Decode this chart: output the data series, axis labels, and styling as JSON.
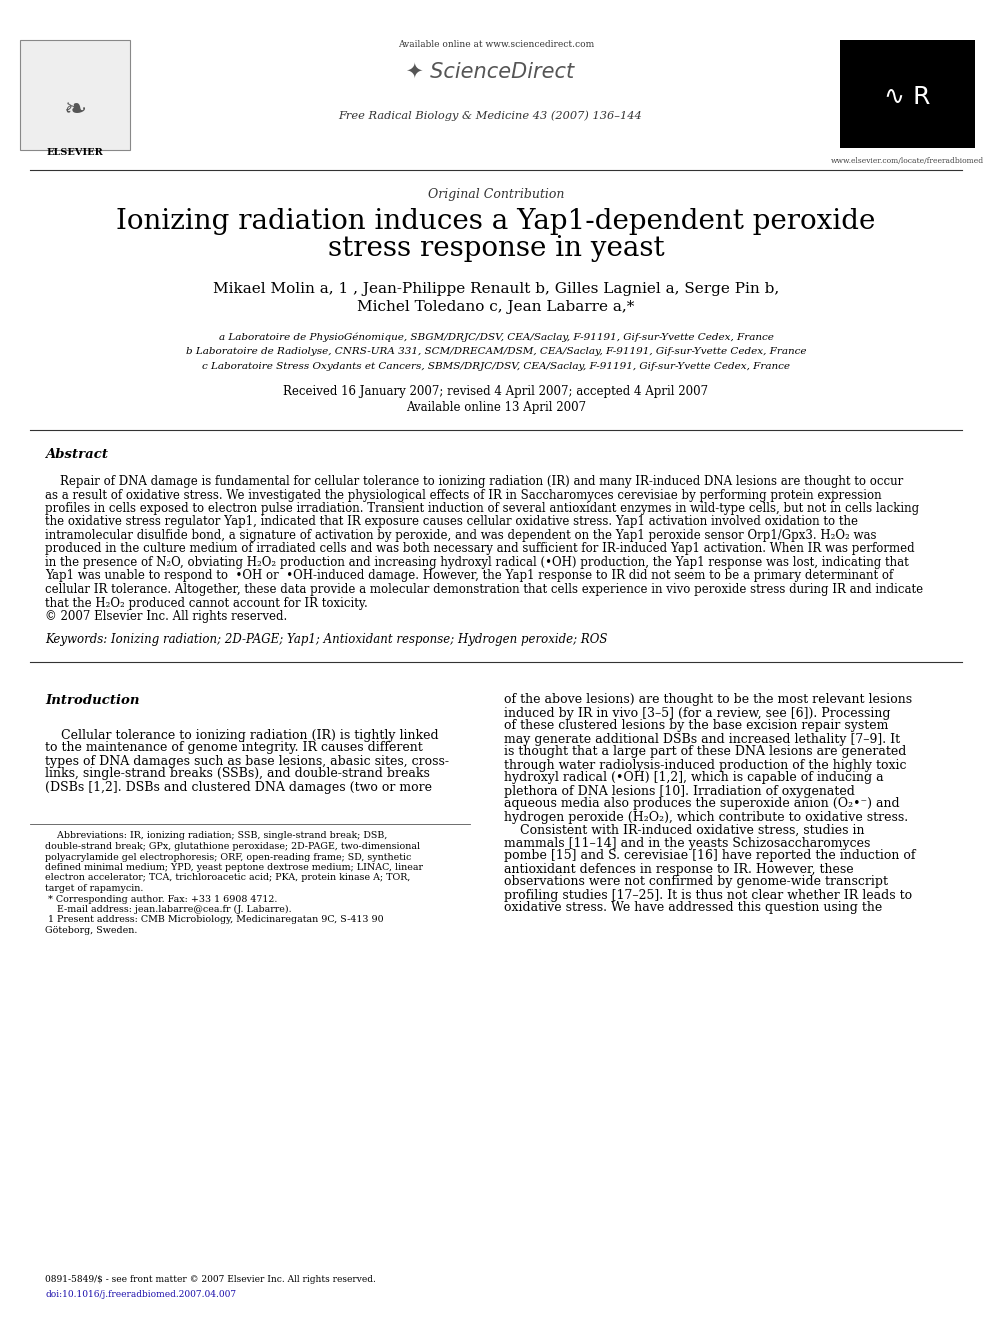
{
  "bg_color": "#ffffff",
  "title_line1": "Ionizing radiation induces a Yap1-dependent peroxide",
  "title_line2": "stress response in yeast",
  "subtitle": "Original Contribution",
  "journal_line": "Free Radical Biology & Medicine 43 (2007) 136–144",
  "available_online": "Available online at www.sciencedirect.com",
  "website": "www.elsevier.com/locate/freeradbiomed",
  "authors_line1": "Mikael Molin a, 1 , Jean-Philippe Renault b, Gilles Lagniel a, Serge Pin b,",
  "authors_line2": "Michel Toledano c, Jean Labarre a,*",
  "affil_a": "a Laboratoire de PhysioGénomique, SBGM/DRJC/DSV, CEA/Saclay, F-91191, Gif-sur-Yvette Cedex, France",
  "affil_b": "b Laboratoire de Radiolyse, CNRS-URA 331, SCM/DRECAM/DSM, CEA/Saclay, F-91191, Gif-sur-Yvette Cedex, France",
  "affil_c": "c Laboratoire Stress Oxydants et Cancers, SBMS/DRJC/DSV, CEA/Saclay, F-91191, Gif-sur-Yvette Cedex, France",
  "received": "Received 16 January 2007; revised 4 April 2007; accepted 4 April 2007",
  "available": "Available online 13 April 2007",
  "abstract_title": "Abstract",
  "abstract_lines": [
    "    Repair of DNA damage is fundamental for cellular tolerance to ionizing radiation (IR) and many IR-induced DNA lesions are thought to occur",
    "as a result of oxidative stress. We investigated the physiological effects of IR in Saccharomyces cerevisiae by performing protein expression",
    "profiles in cells exposed to electron pulse irradiation. Transient induction of several antioxidant enzymes in wild-type cells, but not in cells lacking",
    "the oxidative stress regulator Yap1, indicated that IR exposure causes cellular oxidative stress. Yap1 activation involved oxidation to the",
    "intramolecular disulfide bond, a signature of activation by peroxide, and was dependent on the Yap1 peroxide sensor Orp1/Gpx3. H₂O₂ was",
    "produced in the culture medium of irradiated cells and was both necessary and sufficient for IR-induced Yap1 activation. When IR was performed",
    "in the presence of N₂O, obviating H₂O₂ production and increasing hydroxyl radical (•OH) production, the Yap1 response was lost, indicating that",
    "Yap1 was unable to respond to  •OH or  •OH-induced damage. However, the Yap1 response to IR did not seem to be a primary determinant of",
    "cellular IR tolerance. Altogether, these data provide a molecular demonstration that cells experience in vivo peroxide stress during IR and indicate",
    "that the H₂O₂ produced cannot account for IR toxicity.",
    "© 2007 Elsevier Inc. All rights reserved."
  ],
  "keywords": "Keywords: Ionizing radiation; 2D-PAGE; Yap1; Antioxidant response; Hydrogen peroxide; ROS",
  "intro_title": "Introduction",
  "intro_left_lines": [
    "    Cellular tolerance to ionizing radiation (IR) is tightly linked",
    "to the maintenance of genome integrity. IR causes different",
    "types of DNA damages such as base lesions, abasic sites, cross-",
    "links, single-strand breaks (SSBs), and double-strand breaks",
    "(DSBs [1,2]. DSBs and clustered DNA damages (two or more"
  ],
  "intro_right_lines": [
    "of the above lesions) are thought to be the most relevant lesions",
    "induced by IR in vivo [3–5] (for a review, see [6]). Processing",
    "of these clustered lesions by the base excision repair system",
    "may generate additional DSBs and increased lethality [7–9]. It",
    "is thought that a large part of these DNA lesions are generated",
    "through water radiolysis-induced production of the highly toxic",
    "hydroxyl radical (•OH) [1,2], which is capable of inducing a",
    "plethora of DNA lesions [10]. Irradiation of oxygenated",
    "aqueous media also produces the superoxide anion (O₂•⁻) and",
    "hydrogen peroxide (H₂O₂), which contribute to oxidative stress.",
    "    Consistent with IR-induced oxidative stress, studies in",
    "mammals [11–14] and in the yeasts Schizosaccharomyces",
    "pombe [15] and S. cerevisiae [16] have reported the induction of",
    "antioxidant defences in response to IR. However, these",
    "observations were not confirmed by genome-wide transcript",
    "profiling studies [17–25]. It is thus not clear whether IR leads to",
    "oxidative stress. We have addressed this question using the"
  ],
  "footnote_lines": [
    "    Abbreviations: IR, ionizing radiation; SSB, single-strand break; DSB,",
    "double-strand break; GPx, glutathione peroxidase; 2D-PAGE, two-dimensional",
    "polyacrylamide gel electrophoresis; ORF, open-reading frame; SD, synthetic",
    "defined minimal medium; YPD, yeast peptone dextrose medium; LINAC, linear",
    "electron accelerator; TCA, trichloroacetic acid; PKA, protein kinase A; TOR,",
    "target of rapamycin.",
    " * Corresponding author. Fax: +33 1 6908 4712.",
    "    E-mail address: jean.labarre@cea.fr (J. Labarre).",
    " 1 Present address: CMB Microbiology, Medicinaregatan 9C, S-413 90",
    "Göteborg, Sweden."
  ],
  "issn": "0891-5849/$ - see front matter © 2007 Elsevier Inc. All rights reserved.",
  "doi": "doi:10.1016/j.freeradbiomed.2007.04.007"
}
